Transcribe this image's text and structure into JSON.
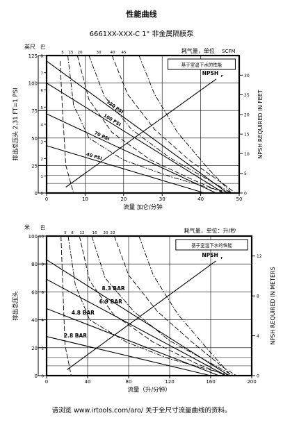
{
  "title": "性能曲线",
  "subtitle": "6661XX-XXX-C 1\" 非金属隔膜泵",
  "footer": "请浏览 www.irtools.com/aro/ 关于全尺寸流量曲线的资料。",
  "chart_data": [
    {
      "type": "line",
      "units": "english",
      "xlabel": "流量 加仑/分钟",
      "ylabel": "排出总压头 2.31 FT=1 PSI",
      "ylabel_units_left_top": "英尺",
      "ylabel_units_left_top_2": "巴",
      "ylabel_right": "NPSH REQUIRED IN FEET",
      "air_label": "耗气量，单位",
      "air_unit": "SCFM",
      "legend_box": "基于室温下水的性能",
      "npsh_label": "NPSH",
      "npsh_sub": "r",
      "xlim": [
        0,
        50
      ],
      "xticks": [
        0,
        10,
        20,
        30,
        40,
        50
      ],
      "xtick_labels": [
        "0",
        "10",
        "20",
        "30",
        "40",
        "50"
      ],
      "ylim": [
        0,
        125
      ],
      "yticks": [
        0,
        25,
        50,
        75,
        100,
        125
      ],
      "ytick_labels": [
        "0",
        "25",
        "50",
        "75",
        "100",
        "125"
      ],
      "yticks_bar": [
        0,
        1,
        2,
        3,
        4,
        5,
        6,
        7,
        8
      ],
      "ytick_bar_labels": [
        "0",
        "1",
        "2",
        "3",
        "4",
        "5",
        "6",
        "7",
        "8"
      ],
      "npsh_ylim": [
        0,
        35
      ],
      "npsh_ticks": [
        0,
        5,
        10,
        15,
        20,
        25,
        30
      ],
      "npsh_tick_labels": [
        "0",
        "5",
        "10",
        "15",
        "20",
        "25",
        "30"
      ],
      "air_ticks": [
        5,
        15,
        20,
        30,
        40,
        45
      ],
      "air_tick_labels": [
        "5",
        "15",
        "20",
        "30",
        "40",
        "45"
      ],
      "series": [
        {
          "name": "120 PSI",
          "x": [
            0,
            47
          ],
          "y": [
            120,
            0
          ]
        },
        {
          "name": "100 PSI",
          "x": [
            0,
            46
          ],
          "y": [
            100,
            0
          ]
        },
        {
          "name": "70 PSI",
          "x": [
            0,
            44
          ],
          "y": [
            72,
            0
          ]
        },
        {
          "name": "40 PSI",
          "x": [
            0,
            41
          ],
          "y": [
            43,
            0
          ]
        }
      ],
      "npsh_curve": {
        "x": [
          5,
          44
        ],
        "y": [
          1.5,
          29
        ]
      },
      "air_curves": [
        {
          "x": [
            3.5,
            4.2,
            5,
            7
          ],
          "y": [
            120,
            70,
            25,
            0
          ]
        },
        {
          "x": [
            5.5,
            7,
            11,
            20,
            32,
            42,
            48
          ],
          "y": [
            125,
            80,
            50,
            30,
            15,
            5,
            0
          ]
        },
        {
          "x": [
            8,
            11,
            17,
            27,
            38,
            46
          ],
          "y": [
            125,
            85,
            55,
            30,
            12,
            0
          ]
        },
        {
          "x": [
            11,
            15,
            22,
            32,
            42,
            48
          ],
          "y": [
            125,
            88,
            58,
            32,
            12,
            0
          ]
        },
        {
          "x": [
            17,
            21,
            28,
            37,
            46,
            49
          ],
          "y": [
            125,
            90,
            58,
            30,
            8,
            0
          ]
        },
        {
          "x": [
            24,
            28,
            34,
            42,
            48
          ],
          "y": [
            125,
            90,
            55,
            22,
            0
          ]
        }
      ]
    },
    {
      "type": "line",
      "units": "metric",
      "xlabel": "流量（升/分钟）",
      "ylabel": "排出总压头",
      "ylabel_units_left_top": "米",
      "ylabel_units_left_top_2": "巴",
      "ylabel_right": "NPSH REQUIRED IN METERS",
      "air_label": "耗气量，单位：升/秒",
      "legend_box": "基于室温下水的性能",
      "npsh_label": "NPSH",
      "npsh_sub": "r",
      "xlim": [
        0,
        200
      ],
      "xticks": [
        0,
        40,
        80,
        120,
        160,
        200
      ],
      "xtick_labels": [
        "0",
        "40",
        "80",
        "120",
        "160",
        "200"
      ],
      "ylim": [
        0,
        100
      ],
      "yticks": [
        0,
        20,
        40,
        60,
        80,
        100
      ],
      "ytick_labels": [
        "0",
        "20",
        "40",
        "60",
        "80",
        "100"
      ],
      "yticks_bar": [
        0,
        2,
        4,
        6,
        8,
        10
      ],
      "ytick_bar_labels": [
        "0",
        "2",
        "4",
        "6",
        "8",
        "10"
      ],
      "npsh_ylim": [
        0,
        14
      ],
      "npsh_ticks": [
        0,
        4,
        8,
        12
      ],
      "npsh_tick_labels": [
        "0",
        "4",
        "8",
        "12"
      ],
      "air_ticks": [
        5,
        8,
        12,
        16,
        20,
        22
      ],
      "air_tick_labels": [
        "5",
        "8",
        "12",
        "16",
        "20",
        "22"
      ],
      "series": [
        {
          "name": "8.3 BAR",
          "x": [
            0,
            178
          ],
          "y": [
            83,
            0
          ]
        },
        {
          "name": "6.9 BAR",
          "x": [
            0,
            175
          ],
          "y": [
            69,
            0
          ]
        },
        {
          "name": "4.8 BAR",
          "x": [
            0,
            168
          ],
          "y": [
            48,
            0
          ]
        },
        {
          "name": "2.8 BAR",
          "x": [
            0,
            160
          ],
          "y": [
            28,
            0
          ]
        }
      ],
      "npsh_curve": {
        "x": [
          20,
          165
        ],
        "y": [
          0.6,
          11.5
        ]
      },
      "air_curves": [
        {
          "x": [
            14,
            16,
            18,
            24
          ],
          "y": [
            100,
            60,
            22,
            0
          ]
        },
        {
          "x": [
            21,
            28,
            42,
            78,
            120,
            160,
            180
          ],
          "y": [
            100,
            65,
            40,
            24,
            12,
            4,
            0
          ]
        },
        {
          "x": [
            32,
            42,
            65,
            104,
            145,
            175
          ],
          "y": [
            100,
            68,
            44,
            24,
            9,
            0
          ]
        },
        {
          "x": [
            44,
            57,
            85,
            120,
            160,
            182
          ],
          "y": [
            100,
            70,
            46,
            25,
            9,
            0
          ]
        },
        {
          "x": [
            66,
            80,
            108,
            142,
            172,
            185
          ],
          "y": [
            100,
            72,
            46,
            24,
            6,
            0
          ]
        },
        {
          "x": [
            90,
            104,
            128,
            158,
            180
          ],
          "y": [
            100,
            72,
            44,
            18,
            0
          ]
        }
      ]
    }
  ]
}
